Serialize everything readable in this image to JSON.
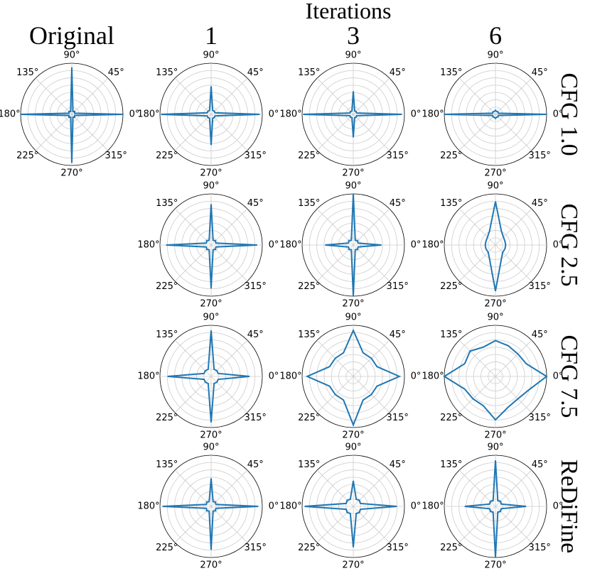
{
  "figure": {
    "title": "Iterations",
    "columns": [
      "Original",
      "1",
      "3",
      "6"
    ],
    "rows": [
      "CFG 1.0",
      "CFG 2.5",
      "CFG 7.5",
      "ReDiFine"
    ],
    "angle_ticks": [
      {
        "value": 0,
        "label": "0°"
      },
      {
        "value": 45,
        "label": "45°"
      },
      {
        "value": 90,
        "label": "90°"
      },
      {
        "value": 135,
        "label": "135°"
      },
      {
        "value": 180,
        "label": "180°"
      },
      {
        "value": 225,
        "label": "225°"
      },
      {
        "value": 270,
        "label": "270°"
      },
      {
        "value": 315,
        "label": "315°"
      }
    ]
  },
  "chart_data": [
    {
      "type": "polar",
      "color": "#1f77b4",
      "rlim": [
        0,
        1
      ],
      "grid": true,
      "x": [
        0,
        22.5,
        45,
        67.5,
        90,
        112.5,
        135,
        157.5,
        180,
        202.5,
        225,
        247.5,
        270,
        292.5,
        315,
        337.5
      ],
      "values": [
        1.0,
        0.06,
        0.08,
        0.06,
        0.92,
        0.06,
        0.08,
        0.06,
        1.0,
        0.06,
        0.08,
        0.06,
        0.95,
        0.06,
        0.08,
        0.06
      ]
    },
    {
      "type": "polar",
      "color": "#1f77b4",
      "rlim": [
        0,
        1
      ],
      "grid": true,
      "x": [
        0,
        22.5,
        45,
        67.5,
        90,
        112.5,
        135,
        157.5,
        180,
        202.5,
        225,
        247.5,
        270,
        292.5,
        315,
        337.5
      ],
      "values": [
        0.95,
        0.08,
        0.09,
        0.08,
        0.55,
        0.08,
        0.09,
        0.08,
        0.98,
        0.08,
        0.09,
        0.08,
        0.6,
        0.08,
        0.09,
        0.08
      ]
    },
    {
      "type": "polar",
      "color": "#1f77b4",
      "rlim": [
        0,
        1
      ],
      "grid": true,
      "x": [
        0,
        22.5,
        45,
        67.5,
        90,
        112.5,
        135,
        157.5,
        180,
        202.5,
        225,
        247.5,
        270,
        292.5,
        315,
        337.5
      ],
      "values": [
        0.95,
        0.07,
        0.08,
        0.07,
        0.45,
        0.07,
        0.08,
        0.07,
        0.98,
        0.07,
        0.08,
        0.07,
        0.45,
        0.07,
        0.08,
        0.07
      ]
    },
    {
      "type": "polar",
      "color": "#1f77b4",
      "rlim": [
        0,
        1
      ],
      "grid": true,
      "x": [
        0,
        22.5,
        45,
        67.5,
        90,
        112.5,
        135,
        157.5,
        180,
        202.5,
        225,
        247.5,
        270,
        292.5,
        315,
        337.5
      ],
      "values": [
        1.0,
        0.06,
        0.07,
        0.06,
        0.08,
        0.06,
        0.07,
        0.06,
        1.0,
        0.06,
        0.07,
        0.06,
        0.08,
        0.06,
        0.07,
        0.06
      ]
    },
    {
      "type": "polar",
      "color": "#1f77b4",
      "rlim": [
        0,
        1
      ],
      "grid": true,
      "x": [
        0,
        22.5,
        45,
        67.5,
        90,
        112.5,
        135,
        157.5,
        180,
        202.5,
        225,
        247.5,
        270,
        292.5,
        315,
        337.5
      ],
      "values": [
        0.9,
        0.1,
        0.12,
        0.1,
        0.8,
        0.1,
        0.12,
        0.1,
        0.88,
        0.1,
        0.12,
        0.1,
        0.85,
        0.1,
        0.12,
        0.1
      ]
    },
    {
      "type": "polar",
      "color": "#1f77b4",
      "rlim": [
        0,
        1
      ],
      "grid": true,
      "x": [
        0,
        22.5,
        45,
        67.5,
        90,
        112.5,
        135,
        157.5,
        180,
        202.5,
        225,
        247.5,
        270,
        292.5,
        315,
        337.5
      ],
      "values": [
        0.55,
        0.1,
        0.12,
        0.1,
        1.0,
        0.1,
        0.12,
        0.1,
        0.55,
        0.1,
        0.12,
        0.1,
        1.0,
        0.1,
        0.12,
        0.1
      ]
    },
    {
      "type": "polar",
      "color": "#1f77b4",
      "rlim": [
        0,
        1
      ],
      "grid": true,
      "x": [
        0,
        22.5,
        45,
        67.5,
        90,
        112.5,
        135,
        157.5,
        180,
        202.5,
        225,
        247.5,
        270,
        292.5,
        315,
        337.5
      ],
      "values": [
        0.2,
        0.2,
        0.22,
        0.3,
        0.85,
        0.3,
        0.22,
        0.2,
        0.2,
        0.2,
        0.2,
        0.3,
        0.9,
        0.3,
        0.2,
        0.2
      ]
    },
    {
      "type": "polar",
      "color": "#1f77b4",
      "rlim": [
        0,
        1
      ],
      "grid": true,
      "x": [
        0,
        22.5,
        45,
        67.5,
        90,
        112.5,
        135,
        157.5,
        180,
        202.5,
        225,
        247.5,
        270,
        292.5,
        315,
        337.5
      ],
      "values": [
        0.75,
        0.15,
        0.16,
        0.15,
        0.9,
        0.15,
        0.16,
        0.15,
        0.85,
        0.15,
        0.16,
        0.15,
        0.9,
        0.15,
        0.16,
        0.15
      ]
    },
    {
      "type": "polar",
      "color": "#1f77b4",
      "rlim": [
        0,
        1
      ],
      "grid": true,
      "x": [
        0,
        22.5,
        45,
        67.5,
        90,
        112.5,
        135,
        157.5,
        180,
        202.5,
        225,
        247.5,
        270,
        292.5,
        315,
        337.5
      ],
      "values": [
        0.9,
        0.5,
        0.5,
        0.5,
        0.9,
        0.5,
        0.5,
        0.5,
        0.9,
        0.5,
        0.5,
        0.5,
        0.95,
        0.5,
        0.5,
        0.5
      ]
    },
    {
      "type": "polar",
      "color": "#1f77b4",
      "rlim": [
        0,
        1
      ],
      "grid": true,
      "x": [
        0,
        22.5,
        45,
        67.5,
        90,
        112.5,
        135,
        157.5,
        180,
        202.5,
        225,
        247.5,
        270,
        292.5,
        315,
        337.5
      ],
      "values": [
        1.0,
        0.65,
        0.62,
        0.65,
        0.7,
        0.62,
        0.7,
        0.65,
        1.0,
        0.65,
        0.62,
        0.62,
        0.85,
        0.65,
        0.62,
        0.7
      ]
    },
    {
      "type": "polar",
      "color": "#1f77b4",
      "rlim": [
        0,
        1
      ],
      "grid": true,
      "x": [
        0,
        22.5,
        45,
        67.5,
        90,
        112.5,
        135,
        157.5,
        180,
        202.5,
        225,
        247.5,
        270,
        292.5,
        315,
        337.5
      ],
      "values": [
        0.92,
        0.1,
        0.12,
        0.1,
        0.55,
        0.1,
        0.12,
        0.1,
        0.95,
        0.1,
        0.12,
        0.1,
        0.85,
        0.1,
        0.12,
        0.1
      ]
    },
    {
      "type": "polar",
      "color": "#1f77b4",
      "rlim": [
        0,
        1
      ],
      "grid": true,
      "x": [
        0,
        22.5,
        45,
        67.5,
        90,
        112.5,
        135,
        157.5,
        180,
        202.5,
        225,
        247.5,
        270,
        292.5,
        315,
        337.5
      ],
      "values": [
        0.85,
        0.15,
        0.17,
        0.15,
        0.5,
        0.15,
        0.17,
        0.15,
        0.95,
        0.15,
        0.17,
        0.15,
        0.8,
        0.15,
        0.17,
        0.15
      ]
    },
    {
      "type": "polar",
      "color": "#1f77b4",
      "rlim": [
        0,
        1
      ],
      "grid": true,
      "x": [
        0,
        22.5,
        45,
        67.5,
        90,
        112.5,
        135,
        157.5,
        180,
        202.5,
        225,
        247.5,
        270,
        292.5,
        315,
        337.5
      ],
      "values": [
        0.6,
        0.12,
        0.14,
        0.12,
        0.9,
        0.12,
        0.14,
        0.12,
        0.6,
        0.12,
        0.14,
        0.12,
        1.0,
        0.12,
        0.14,
        0.12
      ]
    }
  ]
}
